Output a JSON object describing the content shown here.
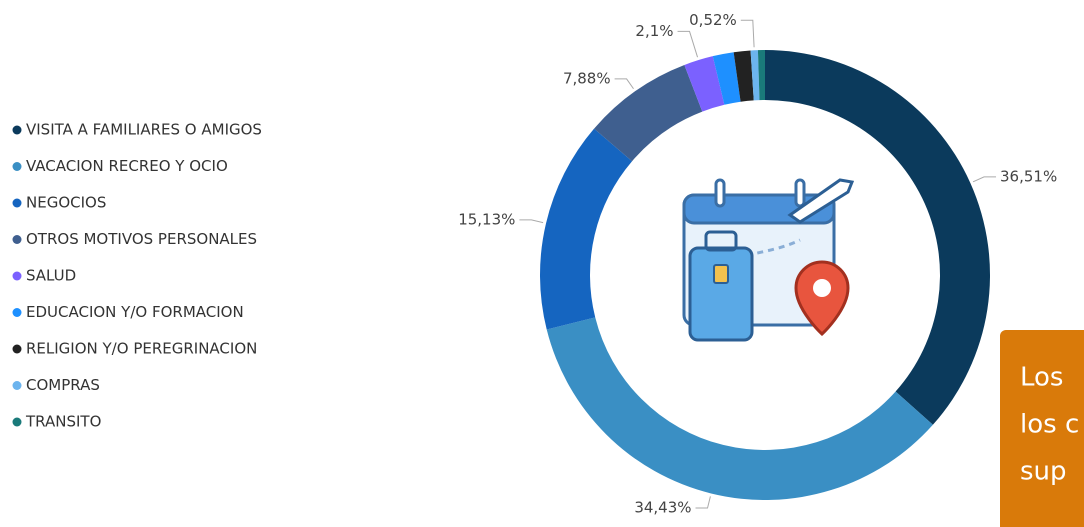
{
  "chart_data": {
    "type": "donut",
    "categories": [
      "VISITA A FAMILIARES O AMIGOS",
      "VACACION RECREO Y OCIO",
      "NEGOCIOS",
      "OTROS MOTIVOS PERSONALES",
      "SALUD",
      "EDUCACION Y/O FORMACION",
      "RELIGION Y/O PEREGRINACION",
      "COMPRAS",
      "TRANSITO"
    ],
    "values": [
      36.51,
      34.43,
      15.13,
      7.88,
      2.1,
      1.5,
      1.2,
      0.52,
      0.5
    ],
    "value_labels": [
      "36,51%",
      "34,43%",
      "15,13%",
      "7,88%",
      "2,1%",
      null,
      null,
      "0,52%",
      null
    ],
    "colors": [
      "#0b3a5c",
      "#3a8fc4",
      "#1565c0",
      "#3f5f8f",
      "#7b61ff",
      "#1e90ff",
      "#222222",
      "#6cb4ee",
      "#1a7a7a"
    ],
    "note": [
      "Los",
      "los c",
      "sup"
    ]
  }
}
